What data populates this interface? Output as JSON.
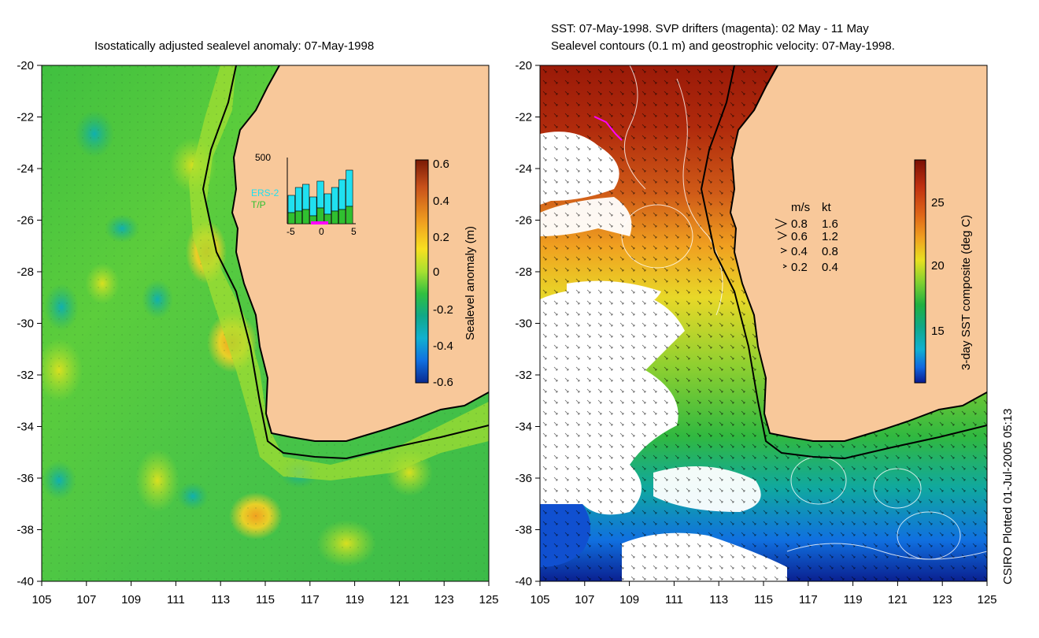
{
  "left_panel": {
    "title": "Isostatically adjusted sealevel anomaly: 07-May-1998",
    "y_ticks": [
      "-20",
      "-22",
      "-24",
      "-26",
      "-28",
      "-30",
      "-32",
      "-34",
      "-36",
      "-38",
      "-40"
    ],
    "x_ticks": [
      "105",
      "107",
      "109",
      "111",
      "113",
      "115",
      "117",
      "119",
      "121",
      "123",
      "125"
    ],
    "colorbar": {
      "label": "Sealevel anomaly (m)",
      "ticks": [
        "0.6",
        "0.4",
        "0.2",
        "0",
        "-0.2",
        "-0.4",
        "-0.6"
      ],
      "colors": [
        "#7a1a05",
        "#c8501a",
        "#f0a020",
        "#f8e020",
        "#a8e030",
        "#30c040",
        "#10a070",
        "#10b0c0",
        "#1070e0",
        "#0a2a90"
      ]
    },
    "inset": {
      "y_label": "500",
      "legend": [
        "ERS-2",
        "T/P"
      ],
      "x_ticks": [
        "-5",
        "0",
        "5"
      ],
      "ers2_color": "#20e0f0",
      "tp_color": "#30c030",
      "highlight_color": "#ff00ff"
    }
  },
  "right_panel": {
    "title_line1": "SST: 07-May-1998. SVP drifters (magenta): 02 May - 11 May",
    "title_line2": "Sealevel contours (0.1 m) and geostrophic velocity: 07-May-1998.",
    "y_ticks": [
      "-20",
      "-22",
      "-24",
      "-26",
      "-28",
      "-30",
      "-32",
      "-34",
      "-36",
      "-38",
      "-40"
    ],
    "x_ticks": [
      "105",
      "107",
      "109",
      "111",
      "113",
      "115",
      "117",
      "119",
      "121",
      "123",
      "125"
    ],
    "velocity_legend": {
      "header": [
        "m/s",
        "kt"
      ],
      "rows": [
        [
          "0.8",
          "1.6"
        ],
        [
          "0.6",
          "1.2"
        ],
        [
          "0.4",
          "0.8"
        ],
        [
          "0.2",
          "0.4"
        ]
      ]
    },
    "colorbar": {
      "label": "3-day SST composite (deg C)",
      "ticks": [
        "25",
        "20",
        "15"
      ],
      "colors": [
        "#7a1005",
        "#c03010",
        "#e06818",
        "#f0a020",
        "#e8e020",
        "#80d030",
        "#20b040",
        "#10a888",
        "#10b0d0",
        "#1068e0",
        "#0a1a90"
      ]
    },
    "drifter_color": "#ff00ff"
  },
  "credit": "CSIRO Plotted 01-Jul-2005 05:13",
  "land_color": "#f8c89a"
}
